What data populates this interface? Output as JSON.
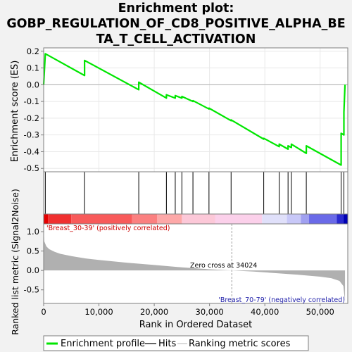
{
  "chart_data": {
    "type": "line",
    "title_lines": [
      "Enrichment plot:",
      "GOBP_REGULATION_OF_CD8_POSITIVE_ALPHA_BE",
      "TA_T_CELL_ACTIVATION"
    ],
    "xlabel": "Rank in Ordered Dataset",
    "ylabel_top": "Enrichment score (ES)",
    "ylabel_bottom": "Ranked list metric (Signal2Noise)",
    "xlim": [
      0,
      55000
    ],
    "x_ticks": [
      0,
      10000,
      20000,
      30000,
      40000,
      50000
    ],
    "x_tick_labels": [
      "0",
      "10,000",
      "20,000",
      "30,000",
      "40,000",
      "50,000"
    ],
    "es_ylim": [
      -0.52,
      0.22
    ],
    "es_ticks": [
      0.2,
      0.1,
      0.0,
      -0.1,
      -0.2,
      -0.3,
      -0.4,
      -0.5
    ],
    "es_tick_labels": [
      "0.2",
      "0.1",
      "0.0",
      "-0.1",
      "-0.2",
      "-0.3",
      "-0.4",
      "-0.5"
    ],
    "metric_ylim": [
      -0.85,
      1.2
    ],
    "metric_ticks": [
      1.0,
      0.5,
      0.0,
      -0.5
    ],
    "metric_tick_labels": [
      "1.0",
      "0.5",
      "0.0",
      "-0.5"
    ],
    "hits": [
      300,
      7400,
      17200,
      22200,
      23800,
      25000,
      27000,
      29900,
      33900,
      39800,
      42600,
      44200,
      44800,
      47500,
      53800,
      54300
    ],
    "es_profile": {
      "name": "Enrichment profile",
      "x": [
        0,
        300,
        7400,
        7400,
        17200,
        17200,
        22200,
        22200,
        23800,
        23800,
        25000,
        25000,
        27000,
        27000,
        29900,
        29900,
        33900,
        33900,
        39800,
        39800,
        42600,
        42600,
        44200,
        44200,
        44800,
        44800,
        47500,
        47500,
        53800,
        53800,
        54300,
        54300,
        54500
      ],
      "y": [
        0.0,
        0.185,
        0.055,
        0.145,
        -0.03,
        0.015,
        -0.08,
        -0.06,
        -0.08,
        -0.065,
        -0.08,
        -0.07,
        -0.1,
        -0.095,
        -0.145,
        -0.14,
        -0.215,
        -0.21,
        -0.325,
        -0.32,
        -0.37,
        -0.355,
        -0.385,
        -0.365,
        -0.375,
        -0.355,
        -0.41,
        -0.365,
        -0.48,
        -0.29,
        -0.3,
        -0.165,
        0.0
      ]
    },
    "metric_curve": {
      "x": [
        0,
        100,
        500,
        1000,
        2000,
        3000,
        5000,
        7500,
        10000,
        15000,
        20000,
        25000,
        30000,
        34024,
        38000,
        42000,
        46000,
        50000,
        52000,
        53500,
        54200,
        54500
      ],
      "y": [
        1.15,
        0.75,
        0.62,
        0.55,
        0.48,
        0.43,
        0.37,
        0.31,
        0.27,
        0.2,
        0.14,
        0.08,
        0.03,
        0.0,
        -0.03,
        -0.07,
        -0.11,
        -0.16,
        -0.2,
        -0.27,
        -0.4,
        -0.8
      ]
    },
    "zero_cross_x": 34024,
    "zero_cross_label": "Zero cross at 34024",
    "pos_label": "'Breast_30-39' (positively correlated)",
    "neg_label": "'Breast_70-79' (negatively correlated)",
    "colors": {
      "es_line": "#00e600",
      "hit_line": "#000000",
      "metric_fill": "#b0b0b0",
      "pos_text": "#cc0000",
      "neg_text": "#2222aa",
      "frame": "#7f7f7f"
    },
    "heat_bands": [
      {
        "from": 0,
        "to": 800,
        "color": "#e50000"
      },
      {
        "from": 800,
        "to": 5000,
        "color": "#f03030"
      },
      {
        "from": 5000,
        "to": 16000,
        "color": "#f85a5a"
      },
      {
        "from": 16000,
        "to": 20500,
        "color": "#fb8080"
      },
      {
        "from": 20500,
        "to": 25000,
        "color": "#fda8a8"
      },
      {
        "from": 25000,
        "to": 31000,
        "color": "#fcc8d8"
      },
      {
        "from": 31000,
        "to": 39500,
        "color": "#fbd0ea"
      },
      {
        "from": 39500,
        "to": 44000,
        "color": "#e0e0fa"
      },
      {
        "from": 44000,
        "to": 46500,
        "color": "#c8c8f8"
      },
      {
        "from": 46500,
        "to": 48000,
        "color": "#a0a0f0"
      },
      {
        "from": 48000,
        "to": 53000,
        "color": "#6a6ae8"
      },
      {
        "from": 53000,
        "to": 54200,
        "color": "#2a2ad0"
      },
      {
        "from": 54200,
        "to": 55000,
        "color": "#0000b4"
      }
    ],
    "legend": [
      {
        "label": "Enrichment profile",
        "color": "#00e600"
      },
      {
        "label": "Hits",
        "color": "#000000"
      },
      {
        "label": "Ranking metric scores",
        "color": "#c0c0c0"
      }
    ]
  }
}
